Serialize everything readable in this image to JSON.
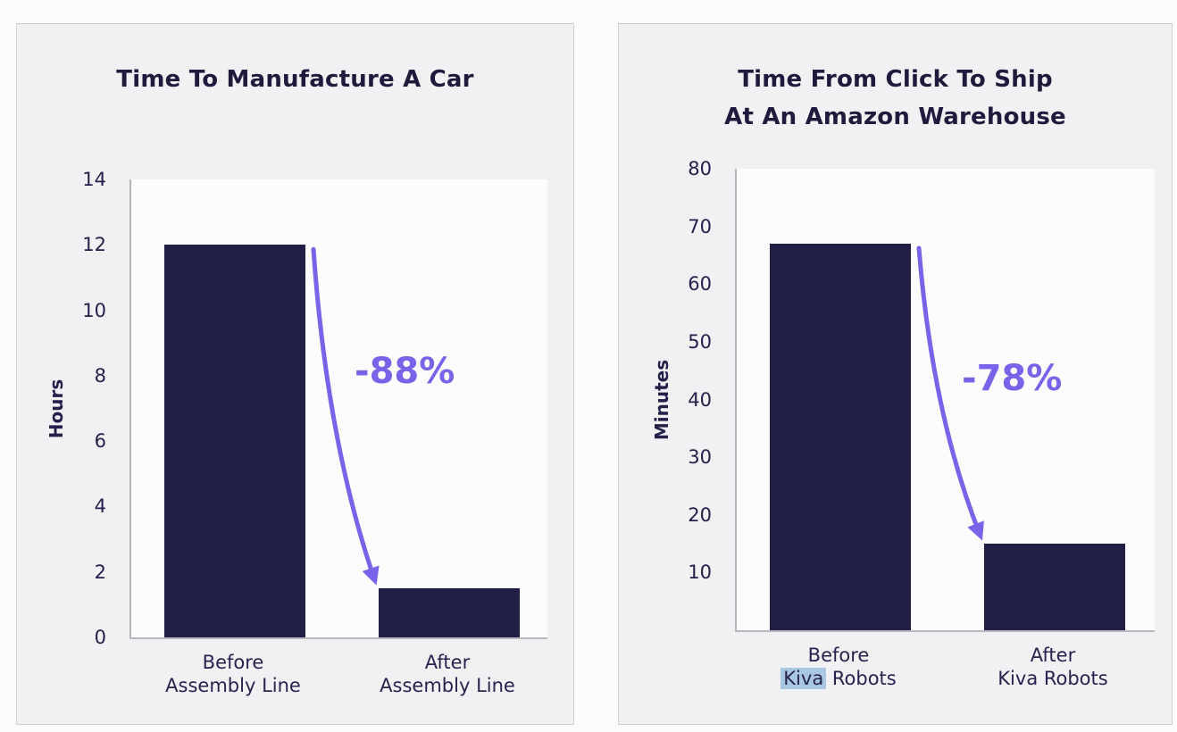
{
  "page": {
    "background": "#fcfcfd"
  },
  "colors": {
    "bar": "#221f47",
    "accent": "#7a63e8",
    "title_text": "#1e1b3c",
    "axis_text": "#23204a",
    "axis_line": "#b6b6bc",
    "card_background": "#f1f1f3",
    "card_border": "#cfcfd4",
    "plot_background": "#fcfcfd",
    "kiva_highlight": "#a9c6e3"
  },
  "chart_data": [
    {
      "type": "bar",
      "title_lines": [
        "Time To Manufacture A Car"
      ],
      "ylabel": "Hours",
      "xlabel": "",
      "ylim": [
        0,
        14
      ],
      "yticks": [
        0,
        2,
        4,
        6,
        8,
        10,
        12,
        14
      ],
      "categories": [
        [
          "Before",
          "Assembly Line"
        ],
        [
          "After",
          "Assembly Line"
        ]
      ],
      "values": [
        12,
        1.5
      ],
      "annotation": "-88%",
      "grid": "off",
      "legend": "none"
    },
    {
      "type": "bar",
      "title_lines": [
        "Time From Click To Ship",
        "At An Amazon Warehouse"
      ],
      "ylabel": "Minutes",
      "xlabel": "",
      "ylim": [
        0,
        80
      ],
      "yticks": [
        10,
        20,
        30,
        40,
        50,
        60,
        70,
        80
      ],
      "categories": [
        [
          "Before",
          "Kiva Robots"
        ],
        [
          "After",
          "Kiva Robots"
        ]
      ],
      "values": [
        67,
        15
      ],
      "annotation": "-78%",
      "highlighted_word": {
        "category": 0,
        "word": "Kiva"
      },
      "grid": "off",
      "legend": "none"
    }
  ]
}
